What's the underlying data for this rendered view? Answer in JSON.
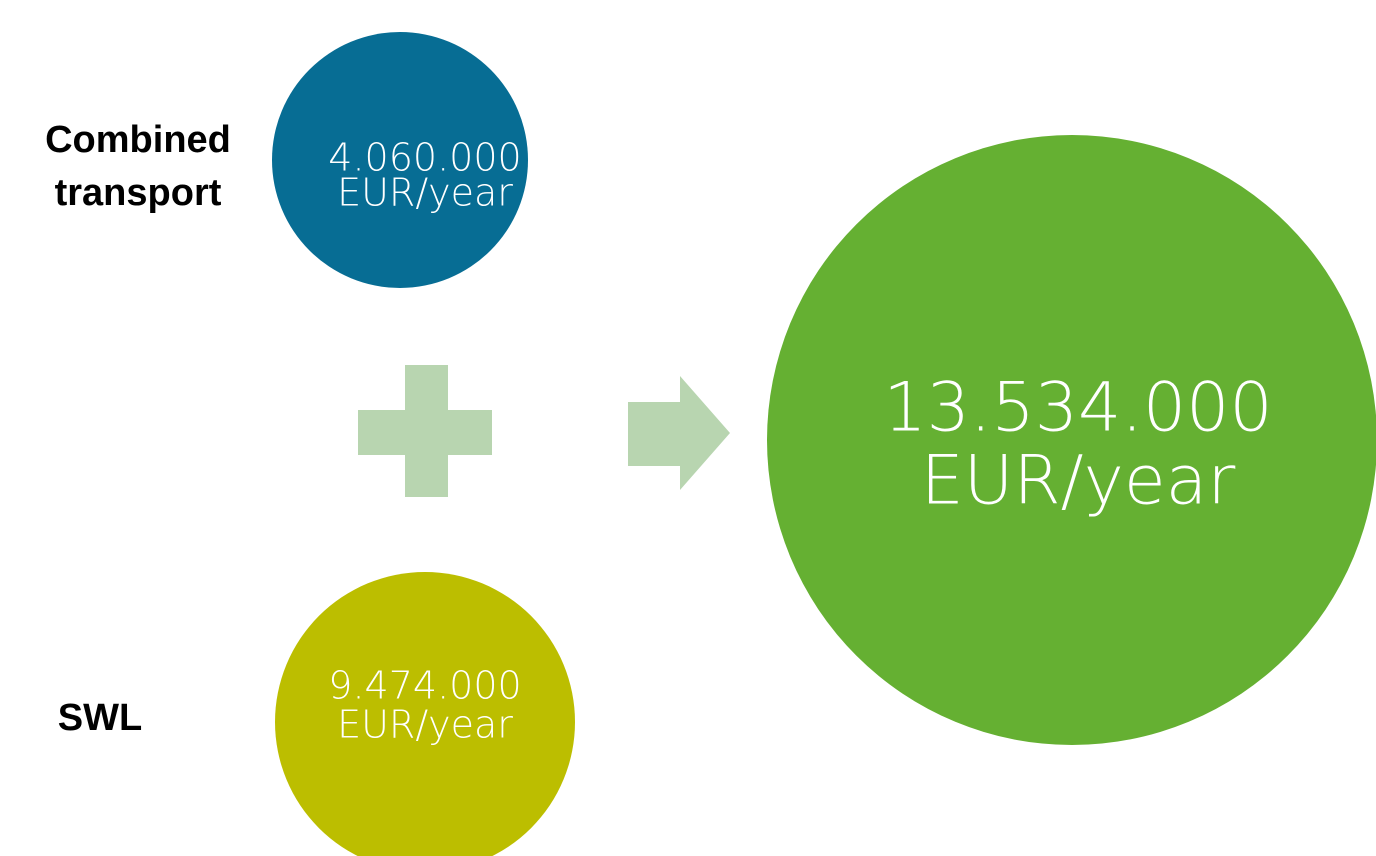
{
  "inputs": [
    {
      "label": [
        "Combined",
        "transport"
      ],
      "value": [
        "4.060.000",
        "EUR/year"
      ]
    },
    {
      "label": [
        "SWL"
      ],
      "value": [
        "9.474.000",
        "EUR/year"
      ]
    }
  ],
  "total": {
    "value": [
      "13.534.000",
      "EUR/year"
    ]
  }
}
